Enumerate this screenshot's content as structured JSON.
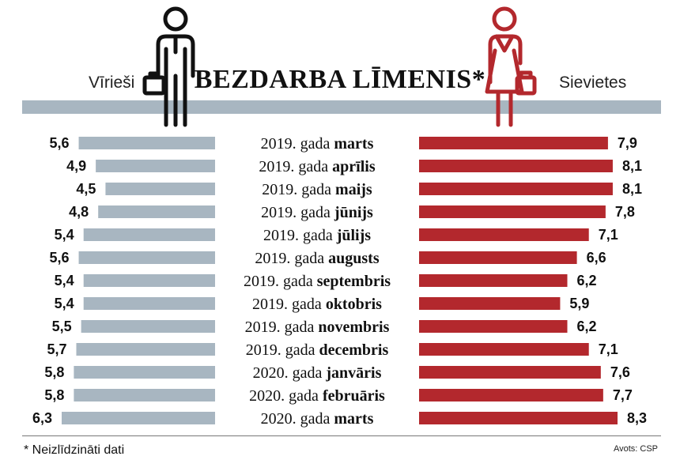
{
  "title": "BEZDARBA LĪMENIS*",
  "left_label": "Vīrieši",
  "right_label": "Sievietes",
  "footnote": "* Neizlīdzināti dati",
  "source": "Avots: CSP",
  "colors": {
    "men": "#a8b6c1",
    "women": "#b3282d",
    "icon_men": "#111111",
    "icon_women": "#b3282d"
  },
  "icons": {
    "men": "man-briefcase-icon",
    "women": "woman-handbag-icon"
  },
  "chart_data": {
    "type": "bar",
    "orientation": "horizontal-diverging",
    "categories": [
      "2019. gada marts",
      "2019. gada aprīlis",
      "2019. gada maijs",
      "2019. gada jūnijs",
      "2019. gada jūlijs",
      "2019. gada augusts",
      "2019. gada septembris",
      "2019. gada oktobris",
      "2019. gada novembris",
      "2019. gada decembris",
      "2020. gada janvāris",
      "2020. gada februāris",
      "2020. gada marts"
    ],
    "category_prefix": [
      "2019. gada",
      "2019. gada",
      "2019. gada",
      "2019. gada",
      "2019. gada",
      "2019. gada",
      "2019. gada",
      "2019. gada",
      "2019. gada",
      "2019. gada",
      "2020. gada",
      "2020. gada",
      "2020. gada"
    ],
    "category_month": [
      "marts",
      "aprīlis",
      "maijs",
      "jūnijs",
      "jūlijs",
      "augusts",
      "septembris",
      "oktobris",
      "novembris",
      "decembris",
      "janvāris",
      "februāris",
      "marts"
    ],
    "series": [
      {
        "name": "Vīrieši",
        "values": [
          5.6,
          4.9,
          4.5,
          4.8,
          5.4,
          5.6,
          5.4,
          5.4,
          5.5,
          5.7,
          5.8,
          5.8,
          6.3
        ],
        "labels": [
          "5,6",
          "4,9",
          "4,5",
          "4,8",
          "5,4",
          "5,6",
          "5,4",
          "5,4",
          "5,5",
          "5,7",
          "5,8",
          "5,8",
          "6,3"
        ]
      },
      {
        "name": "Sievietes",
        "values": [
          7.9,
          8.1,
          8.1,
          7.8,
          7.1,
          6.6,
          6.2,
          5.9,
          6.2,
          7.1,
          7.6,
          7.7,
          8.3
        ],
        "labels": [
          "7,9",
          "8,1",
          "8,1",
          "7,8",
          "7,1",
          "6,6",
          "6,2",
          "5,9",
          "6,2",
          "7,1",
          "7,6",
          "7,7",
          "8,3"
        ]
      }
    ],
    "legend": "none",
    "grid": false
  }
}
